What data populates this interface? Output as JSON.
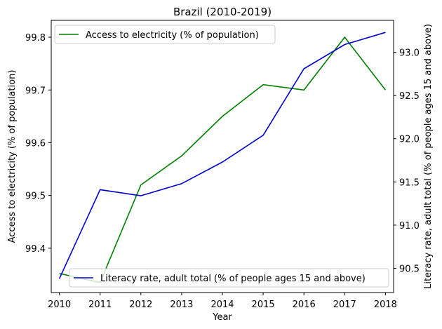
{
  "chart_data": {
    "type": "line",
    "title": "Brazil (2010-2019)",
    "xlabel": "Year",
    "ylabel_left": "Access to electricity (% of population)",
    "ylabel_right": "Literacy rate, adult total (% of people ages 15 and above)",
    "x": [
      2010,
      2011,
      2012,
      2013,
      2014,
      2015,
      2016,
      2017,
      2018
    ],
    "x_ticks": [
      "2010",
      "2011",
      "2012",
      "2013",
      "2014",
      "2015",
      "2016",
      "2017",
      "2018"
    ],
    "ylim_left": [
      99.316,
      99.832
    ],
    "ylim_right": [
      90.22,
      93.37
    ],
    "yticks_left": [
      "99.4",
      "99.5",
      "99.6",
      "99.7",
      "99.8"
    ],
    "yticks_right": [
      "90.5",
      "91.0",
      "91.5",
      "92.0",
      "92.5",
      "93.0"
    ],
    "series": [
      {
        "name": "Access to electricity (% of population)",
        "axis": "left",
        "color": "#008000",
        "values": [
          99.352,
          99.335,
          99.52,
          99.575,
          99.65,
          99.71,
          99.7,
          99.8,
          99.7
        ]
      },
      {
        "name": "Literacy rate, adult total (% of people ages 15 and above)",
        "axis": "right",
        "color": "#0000cd",
        "values": [
          90.38,
          91.41,
          91.34,
          91.48,
          91.73,
          92.04,
          92.81,
          93.09,
          93.23
        ]
      }
    ],
    "legends": [
      "upper-left",
      "lower-right"
    ],
    "grid": false
  }
}
